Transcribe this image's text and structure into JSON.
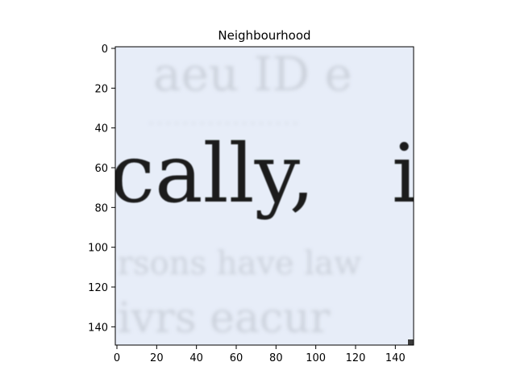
{
  "title": "Neighbourhood",
  "image": {
    "visible_text": "cally,   in",
    "background_color": "#e7edf8",
    "ink_color": "#1c1f1e",
    "ghost_text_color": "#b9bdc6"
  },
  "axes": {
    "x": {
      "range": [
        0,
        150
      ],
      "ticks": [
        0,
        20,
        40,
        60,
        80,
        100,
        120,
        140
      ]
    },
    "y": {
      "range": [
        0,
        150
      ],
      "ticks": [
        0,
        20,
        40,
        60,
        80,
        100,
        120,
        140
      ],
      "inverted": true
    }
  }
}
